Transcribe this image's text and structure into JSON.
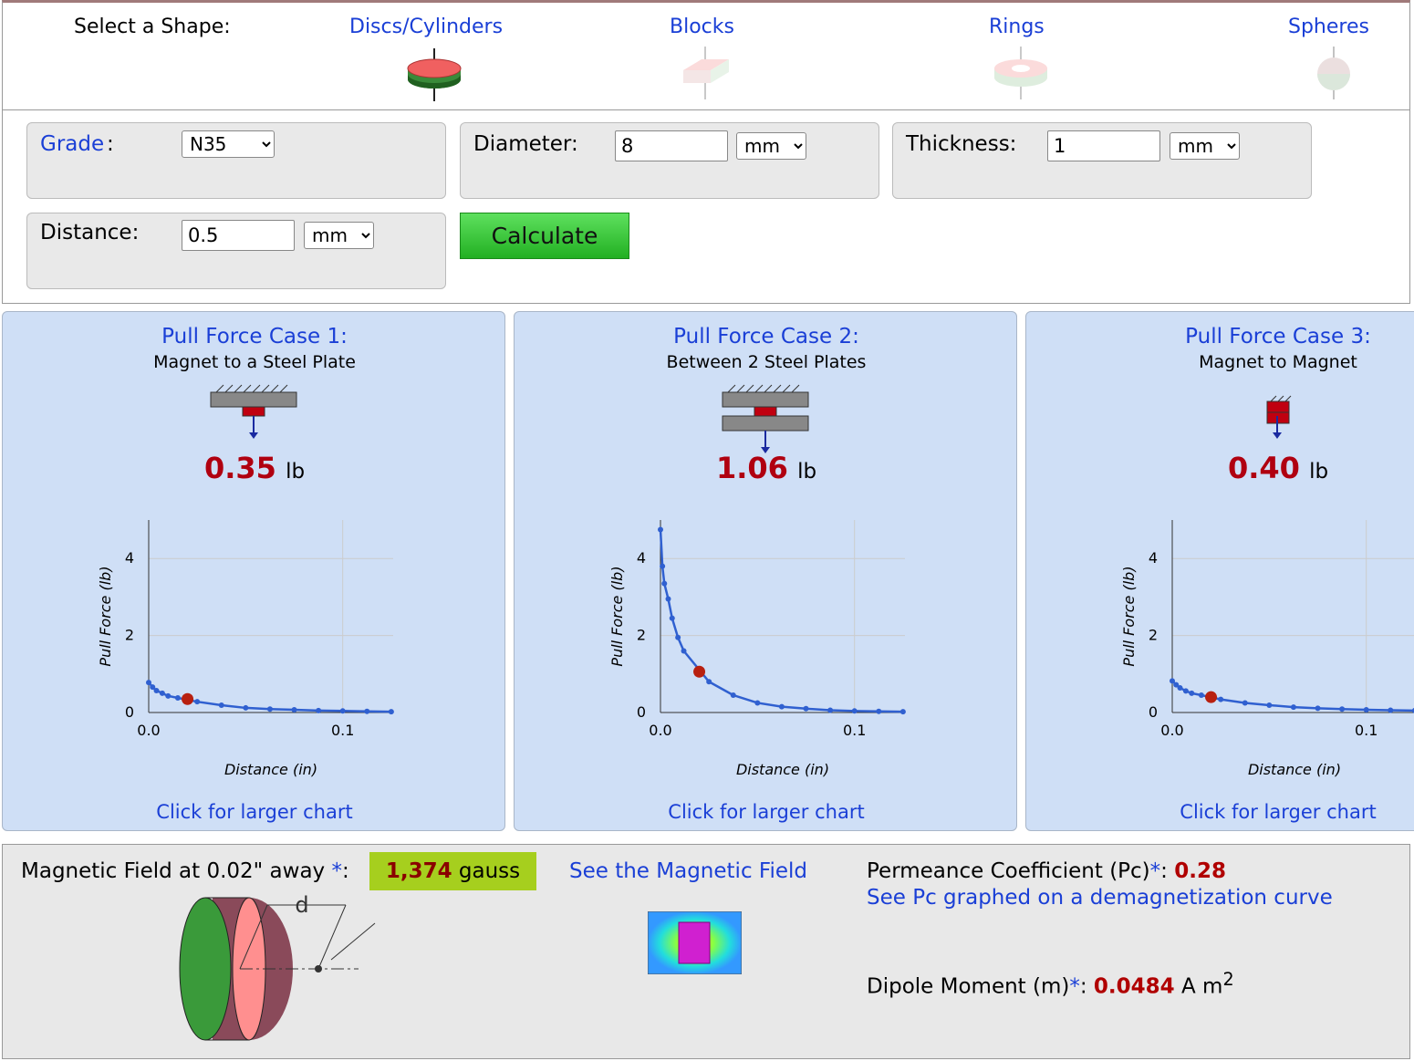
{
  "shape_selector": {
    "label": "Select a Shape:",
    "options": [
      "Discs/Cylinders",
      "Blocks",
      "Rings",
      "Spheres"
    ]
  },
  "inputs": {
    "grade": {
      "label": "Grade",
      "colon": ":",
      "value": "N35"
    },
    "diameter": {
      "label": "Diameter:",
      "value": "8",
      "unit": "mm"
    },
    "thickness": {
      "label": "Thickness:",
      "value": "1",
      "unit": "mm"
    },
    "distance": {
      "label": "Distance:",
      "value": "0.5",
      "unit": "mm"
    },
    "button": "Calculate"
  },
  "cases": [
    {
      "title": "Pull Force Case 1:",
      "subtitle": "Magnet to a Steel Plate",
      "force": 0.35,
      "force_label": "0.35",
      "unit": "lb",
      "link": "Click for larger chart",
      "chart": {
        "type": "line",
        "xlabel": "Distance (in)",
        "ylabel": "Pull Force (lb)",
        "color": "#3060d0",
        "highlight_x": 0.02,
        "highlight_color": "#b82010",
        "grid": true,
        "xlim": [
          0,
          0.126
        ],
        "ylim": [
          0,
          5
        ],
        "xticks": [
          {
            "value": 0,
            "label": "0.0"
          },
          {
            "value": 0.1,
            "label": "0.1"
          }
        ],
        "yticks": [
          0,
          2,
          4
        ],
        "x": [
          0,
          0.002,
          0.004,
          0.007,
          0.01,
          0.015,
          0.025,
          0.0375,
          0.05,
          0.0625,
          0.075,
          0.0875,
          0.1,
          0.1125,
          0.125
        ],
        "values": [
          0.78,
          0.66,
          0.57,
          0.5,
          0.43,
          0.38,
          0.28,
          0.19,
          0.12,
          0.09,
          0.07,
          0.05,
          0.04,
          0.03,
          0.02
        ]
      }
    },
    {
      "title": "Pull Force Case 2:",
      "subtitle": "Between 2 Steel Plates",
      "force": 1.06,
      "force_label": "1.06",
      "unit": "lb",
      "link": "Click for larger chart",
      "chart": {
        "type": "line",
        "xlabel": "Distance (in)",
        "ylabel": "Pull Force (lb)",
        "color": "#3060d0",
        "highlight_x": 0.02,
        "highlight_color": "#b82010",
        "grid": true,
        "xlim": [
          0,
          0.126
        ],
        "ylim": [
          0,
          5
        ],
        "xticks": [
          {
            "value": 0,
            "label": "0.0"
          },
          {
            "value": 0.1,
            "label": "0.1"
          }
        ],
        "yticks": [
          0,
          2,
          4
        ],
        "x": [
          0,
          0.001,
          0.002,
          0.004,
          0.006,
          0.009,
          0.012,
          0.025,
          0.0375,
          0.05,
          0.0625,
          0.075,
          0.0875,
          0.1,
          0.1125,
          0.125
        ],
        "values": [
          4.75,
          3.8,
          3.35,
          2.95,
          2.45,
          1.95,
          1.6,
          0.8,
          0.45,
          0.25,
          0.15,
          0.1,
          0.06,
          0.04,
          0.03,
          0.02
        ]
      }
    },
    {
      "title": "Pull Force Case 3:",
      "subtitle": "Magnet to Magnet",
      "force": 0.4,
      "force_label": "0.40",
      "unit": "lb",
      "link": "Click for larger chart",
      "chart": {
        "type": "line",
        "xlabel": "Distance (in)",
        "ylabel": "Pull Force (lb)",
        "color": "#3060d0",
        "highlight_x": 0.02,
        "highlight_color": "#b82010",
        "grid": true,
        "xlim": [
          0,
          0.126
        ],
        "ylim": [
          0,
          5
        ],
        "xticks": [
          {
            "value": 0,
            "label": "0.0"
          },
          {
            "value": 0.1,
            "label": "0.1"
          }
        ],
        "yticks": [
          0,
          2,
          4
        ],
        "x": [
          0,
          0.002,
          0.004,
          0.007,
          0.01,
          0.015,
          0.025,
          0.0375,
          0.05,
          0.0625,
          0.075,
          0.0875,
          0.1,
          0.1125,
          0.125
        ],
        "values": [
          0.82,
          0.72,
          0.64,
          0.56,
          0.5,
          0.45,
          0.34,
          0.25,
          0.19,
          0.14,
          0.11,
          0.09,
          0.07,
          0.06,
          0.05
        ]
      }
    }
  ],
  "field": {
    "label": "Magnetic Field at 0.02\" away ",
    "star": "*",
    "colon": ":",
    "value": "1,374",
    "unit": "gauss",
    "link": "See the Magnetic Field",
    "dimension": "d"
  },
  "permeance": {
    "label": "Permeance Coefficient (Pc)",
    "star": "*",
    "colon": ":",
    "value": "0.28",
    "link": "See Pc graphed on a demagnetization curve"
  },
  "dipole": {
    "label": "Dipole Moment (m)",
    "star": "*",
    "colon": ":",
    "value": "0.0484",
    "unit": "A m",
    "exponent": "2"
  }
}
